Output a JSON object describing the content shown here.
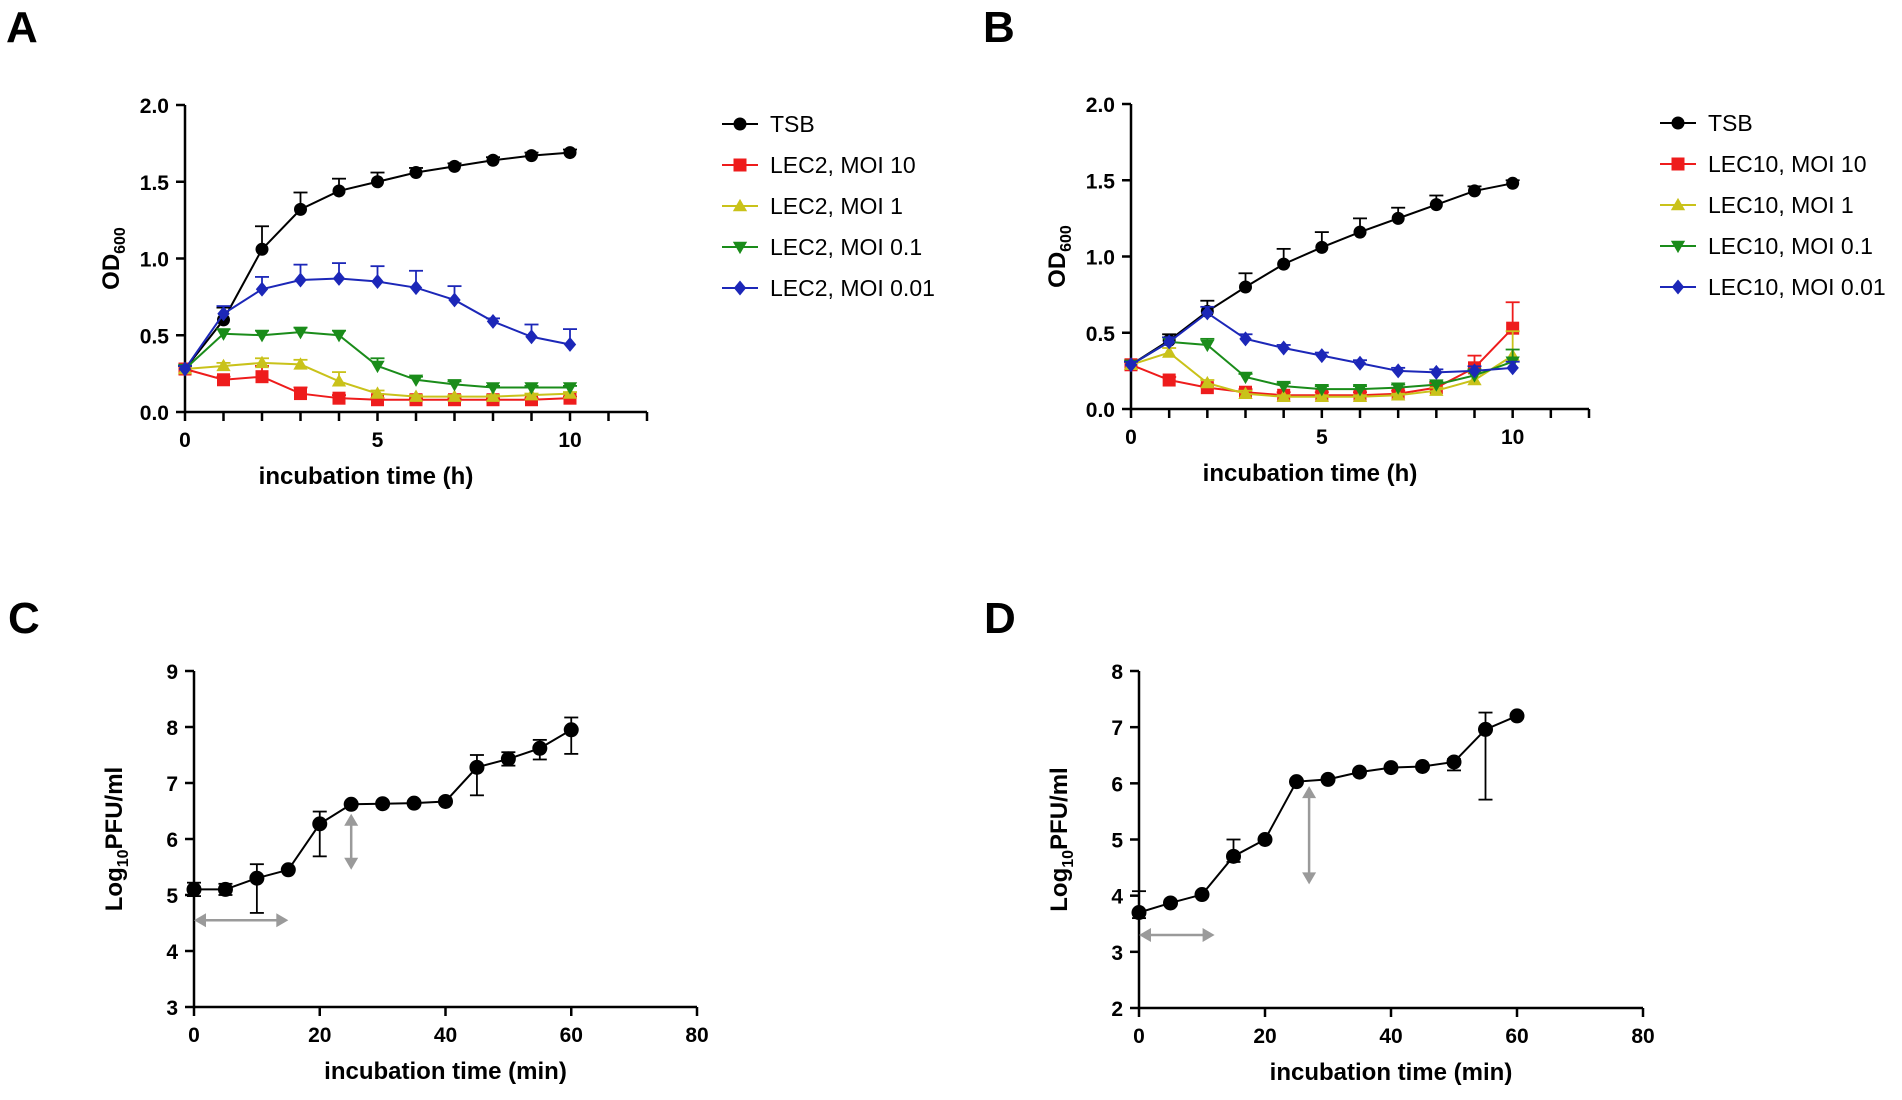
{
  "chart_data": [
    {
      "panel": "A",
      "type": "line",
      "title": "",
      "xlabel": "incubation time (h)",
      "ylabel_main": "OD",
      "ylabel_sub": "600",
      "xlim": [
        0,
        12
      ],
      "ylim": [
        0,
        2
      ],
      "xticks": [
        0,
        5,
        10
      ],
      "xtick_labels": [
        "0",
        "5",
        "10"
      ],
      "yticks": [
        0,
        0.5,
        1,
        1.5,
        2
      ],
      "ytick_labels": [
        "0.0",
        "0.5",
        "1.0",
        "1.5",
        "2.0"
      ],
      "legend_position": "right",
      "series": [
        {
          "name": "TSB",
          "color": "#000000",
          "marker": "circle",
          "x": [
            0,
            1,
            2,
            3,
            4,
            5,
            6,
            7,
            8,
            9,
            10
          ],
          "y": [
            0.28,
            0.6,
            1.06,
            1.32,
            1.44,
            1.5,
            1.56,
            1.6,
            1.64,
            1.67,
            1.69
          ],
          "err": [
            0.02,
            0.08,
            0.15,
            0.11,
            0.08,
            0.06,
            0.03,
            0.02,
            0.02,
            0.02,
            0.02
          ]
        },
        {
          "name": "LEC2, MOI 10",
          "color": "#ee1c1c",
          "marker": "square",
          "x": [
            0,
            1,
            2,
            3,
            4,
            5,
            6,
            7,
            8,
            9,
            10
          ],
          "y": [
            0.28,
            0.21,
            0.23,
            0.12,
            0.09,
            0.08,
            0.08,
            0.08,
            0.08,
            0.08,
            0.09
          ],
          "err": [
            0.02,
            0.02,
            0.07,
            0.04,
            0.02,
            0.01,
            0.01,
            0.01,
            0.01,
            0.01,
            0.01
          ]
        },
        {
          "name": "LEC2, MOI 1",
          "color": "#c9c21a",
          "marker": "triangle-up",
          "x": [
            0,
            1,
            2,
            3,
            4,
            5,
            6,
            7,
            8,
            9,
            10
          ],
          "y": [
            0.28,
            0.3,
            0.32,
            0.31,
            0.2,
            0.12,
            0.1,
            0.1,
            0.1,
            0.11,
            0.12
          ],
          "err": [
            0.02,
            0.02,
            0.03,
            0.03,
            0.06,
            0.02,
            0.01,
            0.01,
            0.01,
            0.01,
            0.01
          ]
        },
        {
          "name": "LEC2, MOI 0.1",
          "color": "#1a8c1a",
          "marker": "triangle-down",
          "x": [
            0,
            1,
            2,
            3,
            4,
            5,
            6,
            7,
            8,
            9,
            10
          ],
          "y": [
            0.28,
            0.51,
            0.5,
            0.52,
            0.5,
            0.3,
            0.21,
            0.18,
            0.16,
            0.16,
            0.16
          ],
          "err": [
            0.02,
            0.03,
            0.03,
            0.03,
            0.03,
            0.05,
            0.02,
            0.02,
            0.01,
            0.01,
            0.01
          ]
        },
        {
          "name": "LEC2, MOI 0.01",
          "color": "#1c27b8",
          "marker": "diamond",
          "x": [
            0,
            1,
            2,
            3,
            4,
            5,
            6,
            7,
            8,
            9,
            10
          ],
          "y": [
            0.28,
            0.64,
            0.8,
            0.86,
            0.87,
            0.85,
            0.81,
            0.73,
            0.59,
            0.49,
            0.44
          ],
          "err": [
            0.02,
            0.05,
            0.08,
            0.1,
            0.1,
            0.1,
            0.11,
            0.09,
            0.02,
            0.08,
            0.1
          ]
        }
      ]
    },
    {
      "panel": "B",
      "type": "line",
      "title": "",
      "xlabel": "incubation time (h)",
      "ylabel_main": "OD",
      "ylabel_sub": "600",
      "xlim": [
        0,
        12
      ],
      "ylim": [
        0,
        2
      ],
      "xticks": [
        0,
        5,
        10
      ],
      "xtick_labels": [
        "0",
        "5",
        "10"
      ],
      "yticks": [
        0,
        0.5,
        1,
        1.5,
        2
      ],
      "ytick_labels": [
        "0.0",
        "0.5",
        "1.0",
        "1.5",
        "2.0"
      ],
      "legend_position": "right",
      "series": [
        {
          "name": "TSB",
          "color": "#000000",
          "marker": "circle",
          "x": [
            0,
            1,
            2,
            3,
            4,
            5,
            6,
            7,
            8,
            9,
            10
          ],
          "y": [
            0.29,
            0.45,
            0.64,
            0.8,
            0.95,
            1.06,
            1.16,
            1.25,
            1.34,
            1.43,
            1.48
          ],
          "err": [
            0.02,
            0.04,
            0.07,
            0.09,
            0.1,
            0.1,
            0.09,
            0.07,
            0.06,
            0.03,
            0.02
          ]
        },
        {
          "name": "LEC10, MOI 10",
          "color": "#ee1c1c",
          "marker": "square",
          "x": [
            0,
            1,
            2,
            3,
            4,
            5,
            6,
            7,
            8,
            9,
            10
          ],
          "y": [
            0.29,
            0.19,
            0.14,
            0.11,
            0.09,
            0.09,
            0.09,
            0.1,
            0.14,
            0.27,
            0.53
          ],
          "err": [
            0.02,
            0.02,
            0.02,
            0.02,
            0.02,
            0.02,
            0.02,
            0.02,
            0.03,
            0.08,
            0.17
          ]
        },
        {
          "name": "LEC10, MOI 1",
          "color": "#c9c21a",
          "marker": "triangle-up",
          "x": [
            0,
            1,
            2,
            3,
            4,
            5,
            6,
            7,
            8,
            9,
            10
          ],
          "y": [
            0.29,
            0.37,
            0.17,
            0.1,
            0.08,
            0.08,
            0.08,
            0.09,
            0.12,
            0.19,
            0.35
          ],
          "err": [
            0.02,
            0.03,
            0.02,
            0.02,
            0.01,
            0.01,
            0.01,
            0.01,
            0.02,
            0.05,
            0.16
          ]
        },
        {
          "name": "LEC10, MOI 0.1",
          "color": "#1a8c1a",
          "marker": "triangle-down",
          "x": [
            0,
            1,
            2,
            3,
            4,
            5,
            6,
            7,
            8,
            9,
            10
          ],
          "y": [
            0.29,
            0.44,
            0.42,
            0.21,
            0.15,
            0.13,
            0.13,
            0.14,
            0.16,
            0.22,
            0.31
          ],
          "err": [
            0.02,
            0.03,
            0.04,
            0.02,
            0.02,
            0.02,
            0.02,
            0.02,
            0.02,
            0.04,
            0.08
          ]
        },
        {
          "name": "LEC10, MOI 0.01",
          "color": "#1c27b8",
          "marker": "diamond",
          "x": [
            0,
            1,
            2,
            3,
            4,
            5,
            6,
            7,
            8,
            9,
            10
          ],
          "y": [
            0.29,
            0.44,
            0.63,
            0.46,
            0.4,
            0.35,
            0.3,
            0.25,
            0.24,
            0.25,
            0.27
          ],
          "err": [
            0.02,
            0.03,
            0.04,
            0.03,
            0.02,
            0.02,
            0.02,
            0.02,
            0.02,
            0.03,
            0.04
          ]
        }
      ]
    },
    {
      "panel": "C",
      "type": "line",
      "title": "",
      "xlabel": "incubation time (min)",
      "ylabel_main": "Log",
      "ylabel_sub": "10",
      "ylabel_tail": "PFU/ml",
      "xlim": [
        0,
        80
      ],
      "ylim": [
        3,
        9
      ],
      "xticks": [
        0,
        20,
        40,
        60,
        80
      ],
      "xtick_labels": [
        "0",
        "20",
        "40",
        "60",
        "80"
      ],
      "yticks": [
        3,
        4,
        5,
        6,
        7,
        8,
        9
      ],
      "ytick_labels": [
        "3",
        "4",
        "5",
        "6",
        "7",
        "8",
        "9"
      ],
      "series": [
        {
          "name": "PFU",
          "color": "#000000",
          "marker": "circle",
          "x": [
            0,
            5,
            10,
            15,
            20,
            25,
            30,
            35,
            40,
            45,
            50,
            55,
            60
          ],
          "y": [
            5.1,
            5.1,
            5.3,
            5.45,
            6.27,
            6.62,
            6.63,
            6.64,
            6.67,
            7.28,
            7.43,
            7.62,
            7.95
          ],
          "err_up": [
            0.12,
            0.1,
            0.25,
            0,
            0.22,
            0,
            0,
            0,
            0,
            0.22,
            0.12,
            0.15,
            0.22
          ],
          "err_down": [
            0.12,
            0.1,
            0.62,
            0,
            0.58,
            0,
            0,
            0,
            0,
            0.5,
            0.12,
            0.2,
            0.43
          ]
        }
      ],
      "annotations": [
        {
          "type": "double-arrow-horizontal",
          "x": [
            0,
            15
          ],
          "y": 4.55,
          "color": "#9a9a9a"
        },
        {
          "type": "double-arrow-vertical",
          "x": 25,
          "y": [
            5.45,
            6.45
          ],
          "color": "#9a9a9a"
        }
      ]
    },
    {
      "panel": "D",
      "type": "line",
      "title": "",
      "xlabel": "incubation time (min)",
      "ylabel_main": "Log",
      "ylabel_sub": "10",
      "ylabel_tail": "PFU/ml",
      "xlim": [
        0,
        80
      ],
      "ylim": [
        2,
        8
      ],
      "xticks": [
        0,
        20,
        40,
        60,
        80
      ],
      "xtick_labels": [
        "0",
        "20",
        "40",
        "60",
        "80"
      ],
      "yticks": [
        2,
        3,
        4,
        5,
        6,
        7,
        8
      ],
      "ytick_labels": [
        "2",
        "3",
        "4",
        "5",
        "6",
        "7",
        "8"
      ],
      "series": [
        {
          "name": "PFU",
          "color": "#000000",
          "marker": "circle",
          "x": [
            0,
            5,
            10,
            15,
            20,
            25,
            30,
            35,
            40,
            45,
            50,
            55,
            60
          ],
          "y": [
            3.7,
            3.87,
            4.02,
            4.7,
            5.0,
            6.03,
            6.07,
            6.2,
            6.28,
            6.3,
            6.38,
            6.96,
            7.2
          ],
          "err_up": [
            0.38,
            0,
            0,
            0.3,
            0,
            0,
            0,
            0,
            0,
            0,
            0.05,
            0.3,
            0
          ],
          "err_down": [
            0.1,
            0,
            0,
            0.1,
            0,
            0,
            0,
            0,
            0,
            0,
            0.15,
            1.25,
            0
          ]
        }
      ],
      "annotations": [
        {
          "type": "double-arrow-horizontal",
          "x": [
            0,
            12
          ],
          "y": 3.3,
          "color": "#9a9a9a"
        },
        {
          "type": "double-arrow-vertical",
          "x": 27,
          "y": [
            4.2,
            5.95
          ],
          "color": "#9a9a9a"
        }
      ]
    }
  ]
}
